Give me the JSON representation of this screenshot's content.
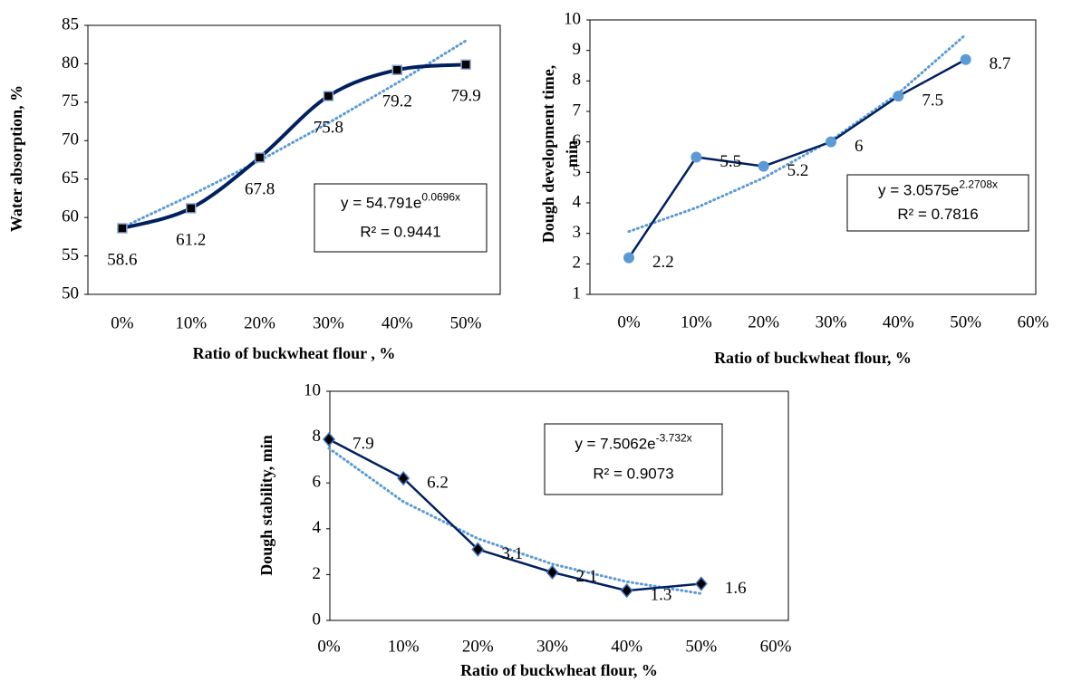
{
  "chart_data": [
    {
      "type": "line",
      "smooth": true,
      "marker": "square",
      "y_label": [
        "Water absorption, %"
      ],
      "x_label": "Ratio of buckwheat flour , %",
      "categories": [
        "0%",
        "10%",
        "20%",
        "30%",
        "40%",
        "50%"
      ],
      "series": [
        {
          "color": "#002060",
          "values": [
            58.6,
            61.2,
            67.8,
            75.8,
            79.2,
            79.9
          ]
        }
      ],
      "trendline": {
        "color": "#5b9bd5",
        "values": [
          58.7,
          62.9,
          67.4,
          72.3,
          77.5,
          83.0
        ]
      },
      "equation": {
        "base": "y = 54.791e",
        "exponent": "0.0696x",
        "r2": "R² = 0.9441"
      },
      "ylim": [
        50,
        85
      ],
      "yticks": [
        50,
        55,
        60,
        65,
        70,
        75,
        80,
        85
      ]
    },
    {
      "type": "line",
      "smooth": false,
      "marker": "circle",
      "y_label": [
        "Dough development  time,",
        "min"
      ],
      "x_label": "Ratio of buckwheat flour, %",
      "x": [
        0,
        10,
        20,
        30,
        40,
        50
      ],
      "series": [
        {
          "color": "#002060",
          "marker_color": "#5b9bd5",
          "values": [
            2.2,
            5.5,
            5.2,
            6,
            7.5,
            8.7
          ]
        }
      ],
      "trendline": {
        "color": "#5b9bd5",
        "values": [
          3.06,
          3.84,
          4.82,
          6.05,
          7.59,
          9.52
        ]
      },
      "equation": {
        "base": "y = 3.0575e",
        "exponent": "2.2708x",
        "r2": "R² = 0.7816"
      },
      "xlim": [
        0,
        60
      ],
      "xticks": [
        {
          "value": 0,
          "label": "0%"
        },
        {
          "value": 10,
          "label": "10%"
        },
        {
          "value": 20,
          "label": "20%"
        },
        {
          "value": 30,
          "label": "30%"
        },
        {
          "value": 40,
          "label": "40%"
        },
        {
          "value": 50,
          "label": "50%"
        },
        {
          "value": 60,
          "label": "60%"
        }
      ],
      "ylim": [
        1,
        10
      ],
      "yticks": [
        1,
        2,
        3,
        4,
        5,
        6,
        7,
        8,
        9,
        10
      ]
    },
    {
      "type": "line",
      "smooth": false,
      "marker": "diamond",
      "y_label": [
        "Dough stability, min"
      ],
      "x_label": "Ratio of buckwheat flour, %",
      "x": [
        0,
        10,
        20,
        30,
        40,
        50
      ],
      "series": [
        {
          "color": "#002060",
          "values": [
            7.9,
            6.2,
            3.1,
            2.1,
            1.3,
            1.6
          ]
        }
      ],
      "trendline": {
        "color": "#5b9bd5",
        "values": [
          7.51,
          5.18,
          3.57,
          2.46,
          1.69,
          1.17
        ]
      },
      "equation": {
        "base": "y = 7.5062e",
        "exponent": "-3.732x",
        "r2": "R² = 0.9073"
      },
      "xlim": [
        0,
        60
      ],
      "xticks": [
        {
          "value": 0,
          "label": "0%"
        },
        {
          "value": 10,
          "label": "10%"
        },
        {
          "value": 20,
          "label": "20%"
        },
        {
          "value": 30,
          "label": "30%"
        },
        {
          "value": 40,
          "label": "40%"
        },
        {
          "value": 50,
          "label": "50%"
        },
        {
          "value": 60,
          "label": "60%"
        }
      ],
      "ylim": [
        0,
        10
      ],
      "yticks": [
        0,
        2,
        4,
        6,
        8,
        10
      ]
    }
  ]
}
